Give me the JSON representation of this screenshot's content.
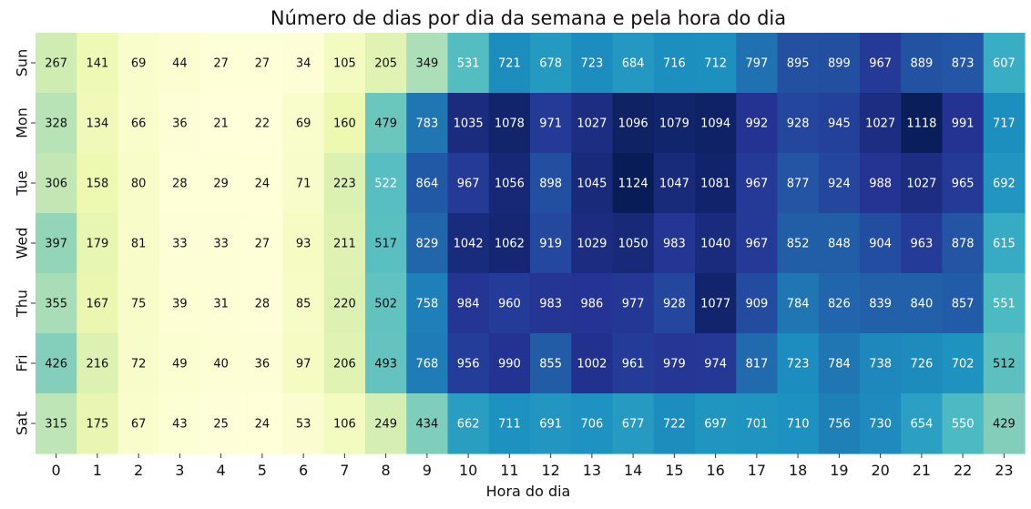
{
  "chart_data": {
    "type": "heatmap",
    "title": "Número de dias por dia da semana e pela hora do dia",
    "xlabel": "Hora do dia",
    "ylabel": "",
    "x_categories": [
      "0",
      "1",
      "2",
      "3",
      "4",
      "5",
      "6",
      "7",
      "8",
      "9",
      "10",
      "11",
      "12",
      "13",
      "14",
      "15",
      "16",
      "17",
      "18",
      "19",
      "20",
      "21",
      "22",
      "23"
    ],
    "y_categories": [
      "Sun",
      "Mon",
      "Tue",
      "Wed",
      "Thu",
      "Fri",
      "Sat"
    ],
    "values": [
      [
        267,
        141,
        69,
        44,
        27,
        27,
        34,
        105,
        205,
        349,
        531,
        721,
        678,
        723,
        684,
        716,
        712,
        797,
        895,
        899,
        967,
        889,
        873,
        607
      ],
      [
        328,
        134,
        66,
        36,
        21,
        22,
        69,
        160,
        479,
        783,
        1035,
        1078,
        971,
        1027,
        1096,
        1079,
        1094,
        992,
        928,
        945,
        1027,
        1118,
        991,
        717
      ],
      [
        306,
        158,
        80,
        28,
        29,
        24,
        71,
        223,
        522,
        864,
        967,
        1056,
        898,
        1045,
        1124,
        1047,
        1081,
        967,
        877,
        924,
        988,
        1027,
        965,
        692
      ],
      [
        397,
        179,
        81,
        33,
        33,
        27,
        93,
        211,
        517,
        829,
        1042,
        1062,
        919,
        1029,
        1050,
        983,
        1040,
        967,
        852,
        848,
        904,
        963,
        878,
        615
      ],
      [
        355,
        167,
        75,
        39,
        31,
        28,
        85,
        220,
        502,
        758,
        984,
        960,
        983,
        986,
        977,
        928,
        1077,
        909,
        784,
        826,
        839,
        840,
        857,
        551
      ],
      [
        426,
        216,
        72,
        49,
        40,
        36,
        97,
        206,
        493,
        768,
        956,
        990,
        855,
        1002,
        961,
        979,
        974,
        817,
        723,
        784,
        738,
        726,
        702,
        512
      ],
      [
        315,
        175,
        67,
        43,
        25,
        24,
        53,
        106,
        249,
        434,
        662,
        711,
        691,
        706,
        677,
        722,
        697,
        701,
        710,
        756,
        730,
        654,
        550,
        429
      ]
    ],
    "colormap": "YlGnBu",
    "value_range": [
      21,
      1124
    ],
    "colorbar": false,
    "annotations": true,
    "grid": false
  }
}
